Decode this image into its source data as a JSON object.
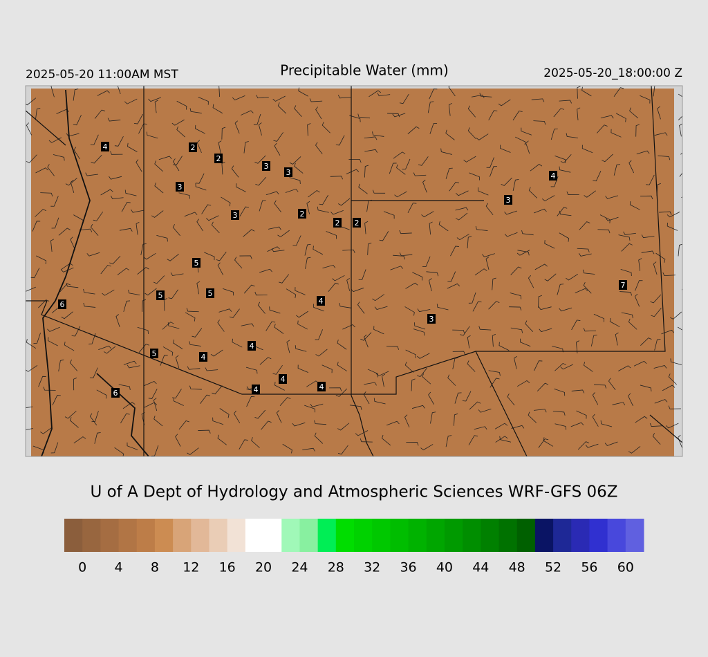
{
  "header": {
    "left": "2025-05-20 11:00AM MST",
    "title": "Precipitable Water (mm)",
    "right": "2025-05-20_18:00:00 Z"
  },
  "map": {
    "background": "#b87a48",
    "station_values": [
      4,
      2,
      2,
      3,
      3,
      3,
      3,
      2,
      2,
      2,
      4,
      3,
      5,
      5,
      5,
      4,
      6,
      7,
      3,
      4,
      5,
      4,
      4,
      4,
      4,
      6
    ]
  },
  "credit": "U of A Dept of Hydrology and Atmospheric Sciences WRF-GFS 06Z",
  "colorbar": {
    "lim": [
      -2,
      62
    ],
    "ticks": [
      0,
      4,
      8,
      12,
      16,
      20,
      24,
      28,
      32,
      36,
      40,
      44,
      48,
      52,
      56,
      60
    ],
    "colors": [
      "#8b5e3c",
      "#98663f",
      "#a56d42",
      "#b17545",
      "#bd7d48",
      "#cc8c52",
      "#d8a478",
      "#e2b898",
      "#eacdb6",
      "#f2e2d6",
      "#ffffff",
      "#ffffff",
      "#a0f8b8",
      "#88f0a0",
      "#00ee55",
      "#00dd00",
      "#00d200",
      "#00c800",
      "#00bd00",
      "#00b200",
      "#00a600",
      "#009a00",
      "#008e00",
      "#008000",
      "#007200",
      "#006000",
      "#0a1464",
      "#1e2896",
      "#2a2ab4",
      "#3030d0",
      "#4848dc",
      "#6060e0"
    ]
  }
}
